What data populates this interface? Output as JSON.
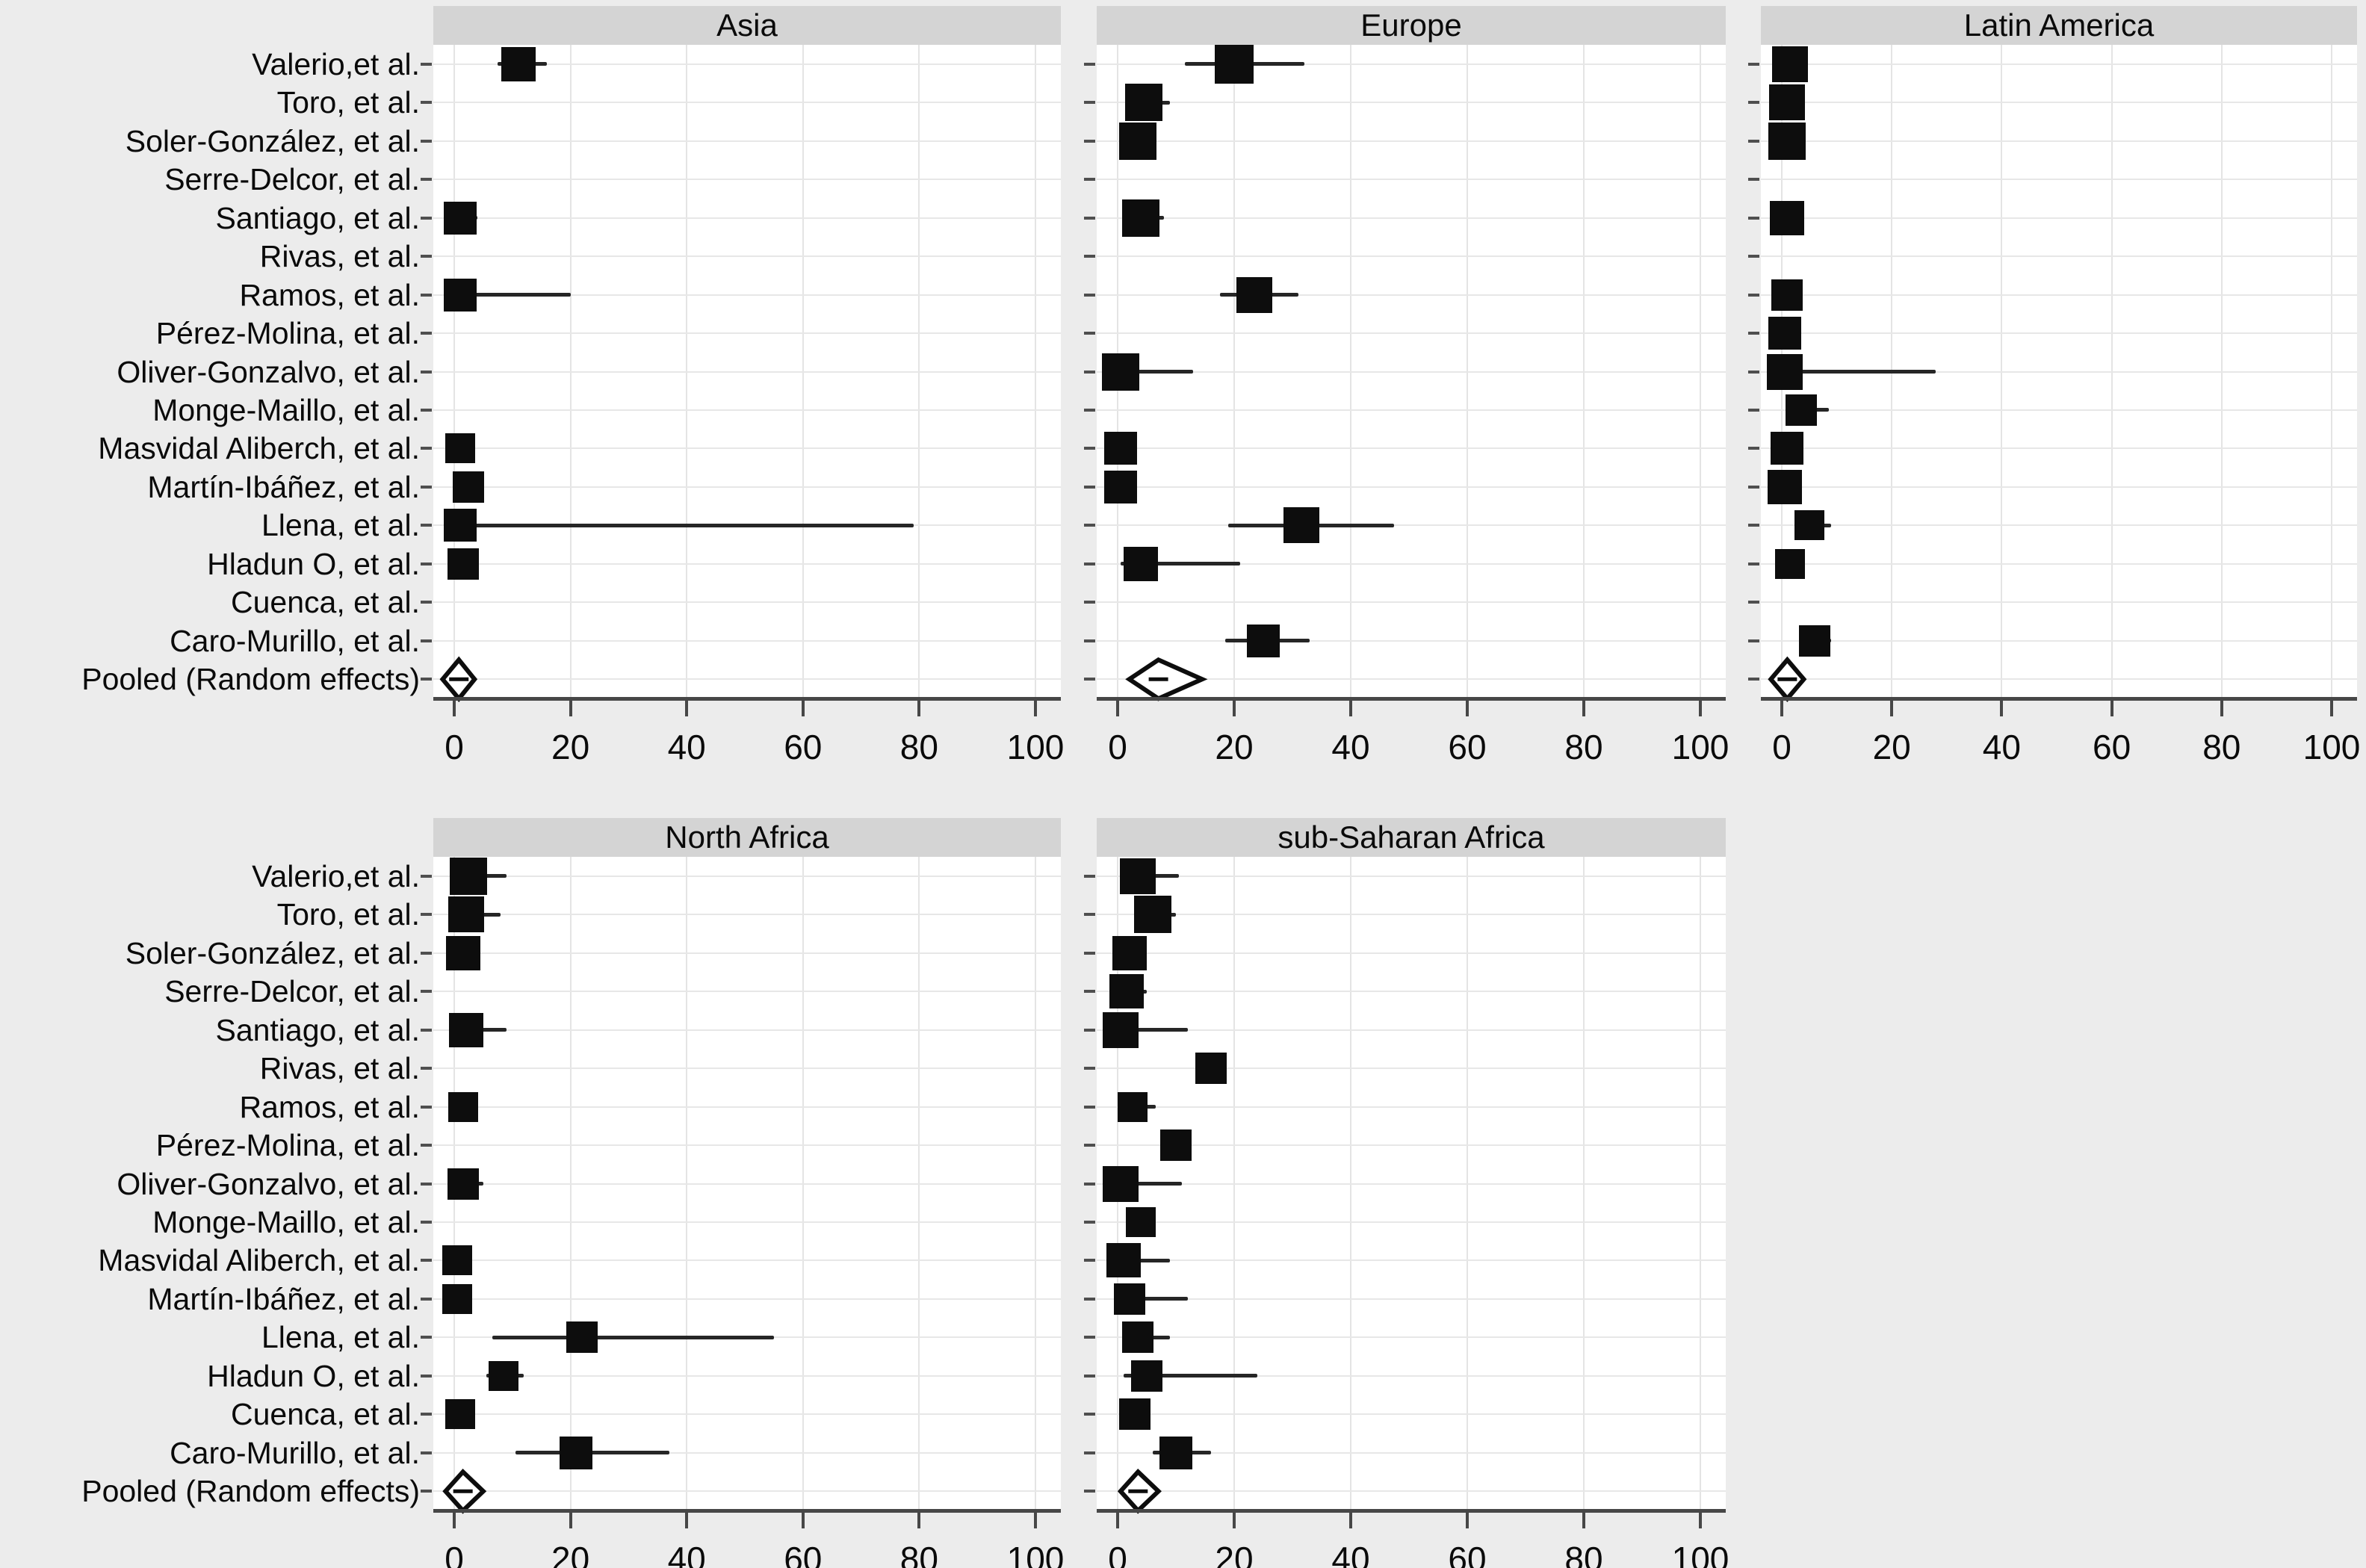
{
  "figure": {
    "description": "Forest plot meta-analysis of prevalence by region of origin; five panels with shared study list",
    "pooled_label": "Pooled (Random effects)"
  },
  "chart_data": {
    "type": "scatter",
    "subtype": "forest-plot",
    "grid": true,
    "studies": [
      "Valerio,et al.",
      "Toro, et al.",
      "Soler-González, et al.",
      "Serre-Delcor, et al.",
      "Santiago, et al.",
      "Rivas, et al.",
      "Ramos, et al.",
      "Pérez-Molina, et al.",
      "Oliver-Gonzalvo, et al.",
      "Monge-Maillo, et al.",
      "Masvidal Aliberch, et al.",
      "Martín-Ibáñez, et al.",
      "Llena, et al.",
      "Hladun O, et al.",
      "Cuenca, et al.",
      "Caro-Murillo, et al.",
      "Pooled (Random effects)"
    ],
    "x_axis": {
      "lim": [
        0,
        100
      ],
      "ticks": [
        "0",
        "20",
        "40",
        "60",
        "80",
        "100"
      ],
      "tick_values": [
        0,
        20,
        40,
        60,
        80,
        100
      ]
    },
    "marker_note": "black square = study estimate (size ~ weight), horizontal line = confidence interval, open diamond = pooled random-effects estimate",
    "panels": [
      {
        "title": "Asia",
        "points": [
          {
            "est": 11,
            "lo": 7.5,
            "hi": 16,
            "s": 46
          },
          null,
          null,
          null,
          {
            "est": 1,
            "lo": 0,
            "hi": 4,
            "s": 44
          },
          null,
          {
            "est": 1,
            "lo": 0,
            "hi": 20,
            "s": 44
          },
          null,
          null,
          null,
          {
            "est": 1,
            "lo": 0,
            "hi": 2.5,
            "s": 40
          },
          {
            "est": 2.5,
            "lo": 1,
            "hi": 4.5,
            "s": 42
          },
          {
            "est": 1,
            "lo": 0,
            "hi": 79,
            "s": 44
          },
          {
            "est": 1.5,
            "lo": 0,
            "hi": 3,
            "s": 42
          },
          null,
          null
        ],
        "pooled": {
          "est": 0.8,
          "lo": -2,
          "hi": 3.5
        }
      },
      {
        "title": "Europe",
        "points": [
          {
            "est": 20,
            "lo": 11.5,
            "hi": 32,
            "s": 52
          },
          {
            "est": 4.5,
            "lo": 2,
            "hi": 9,
            "s": 50
          },
          {
            "est": 3.5,
            "lo": 2.5,
            "hi": 5,
            "s": 50
          },
          null,
          {
            "est": 4,
            "lo": 1.5,
            "hi": 8,
            "s": 50
          },
          null,
          {
            "est": 23.5,
            "lo": 17.5,
            "hi": 31,
            "s": 48
          },
          null,
          {
            "est": 0.5,
            "lo": 0,
            "hi": 13,
            "s": 50
          },
          null,
          {
            "est": 0.5,
            "lo": 0,
            "hi": 2,
            "s": 44
          },
          {
            "est": 0.5,
            "lo": 0,
            "hi": 2,
            "s": 44
          },
          {
            "est": 31.5,
            "lo": 19,
            "hi": 47.5,
            "s": 48
          },
          {
            "est": 4,
            "lo": 0.5,
            "hi": 21,
            "s": 46
          },
          null,
          {
            "est": 25,
            "lo": 18.5,
            "hi": 33,
            "s": 44
          }
        ],
        "pooled": {
          "est": 7,
          "lo": 2,
          "hi": 14.5
        }
      },
      {
        "title": "Latin America",
        "points": [
          {
            "est": 1.5,
            "lo": 0.5,
            "hi": 4,
            "s": 48
          },
          {
            "est": 1,
            "lo": 0,
            "hi": 2,
            "s": 48
          },
          {
            "est": 1,
            "lo": 0,
            "hi": 3,
            "s": 50
          },
          null,
          {
            "est": 1,
            "lo": 0,
            "hi": 2,
            "s": 46
          },
          null,
          {
            "est": 1,
            "lo": 0,
            "hi": 2,
            "s": 42
          },
          {
            "est": 0.5,
            "lo": 0,
            "hi": 2,
            "s": 44
          },
          {
            "est": 0.5,
            "lo": 0,
            "hi": 28,
            "s": 48
          },
          {
            "est": 3.5,
            "lo": 1.5,
            "hi": 8.5,
            "s": 42
          },
          {
            "est": 1,
            "lo": 0,
            "hi": 2,
            "s": 44
          },
          {
            "est": 0.5,
            "lo": 0,
            "hi": 2,
            "s": 46
          },
          {
            "est": 5,
            "lo": 3.5,
            "hi": 9,
            "s": 40
          },
          {
            "est": 1.5,
            "lo": 0.5,
            "hi": 3,
            "s": 40
          },
          null,
          {
            "est": 6,
            "lo": 4.5,
            "hi": 9,
            "s": 42
          }
        ],
        "pooled": {
          "est": 1,
          "lo": -2,
          "hi": 4
        }
      },
      {
        "title": "North Africa",
        "points": [
          {
            "est": 2.5,
            "lo": 1,
            "hi": 9,
            "s": 50
          },
          {
            "est": 2,
            "lo": 0.5,
            "hi": 8,
            "s": 48
          },
          {
            "est": 1.5,
            "lo": 0.5,
            "hi": 3,
            "s": 46
          },
          null,
          {
            "est": 2,
            "lo": 0.5,
            "hi": 9,
            "s": 46
          },
          null,
          {
            "est": 1.5,
            "lo": 0.5,
            "hi": 4,
            "s": 40
          },
          null,
          {
            "est": 1.5,
            "lo": 0.5,
            "hi": 5,
            "s": 42
          },
          null,
          {
            "est": 0.5,
            "lo": 0,
            "hi": 2,
            "s": 40
          },
          {
            "est": 0.5,
            "lo": 0,
            "hi": 2,
            "s": 40
          },
          {
            "est": 22,
            "lo": 6.5,
            "hi": 55,
            "s": 42
          },
          {
            "est": 8.5,
            "lo": 5.5,
            "hi": 12,
            "s": 40
          },
          {
            "est": 1,
            "lo": 0,
            "hi": 2.5,
            "s": 40
          },
          {
            "est": 21,
            "lo": 10.5,
            "hi": 37,
            "s": 44
          }
        ],
        "pooled": {
          "est": 1.5,
          "lo": -1.5,
          "hi": 5
        }
      },
      {
        "title": "sub-Saharan Africa",
        "points": [
          {
            "est": 3.5,
            "lo": 1.5,
            "hi": 10.5,
            "s": 48
          },
          {
            "est": 6,
            "lo": 4,
            "hi": 10,
            "s": 50
          },
          {
            "est": 2,
            "lo": 1,
            "hi": 3,
            "s": 46
          },
          {
            "est": 1.5,
            "lo": 0.5,
            "hi": 5,
            "s": 46
          },
          {
            "est": 0.5,
            "lo": 0,
            "hi": 12,
            "s": 48
          },
          {
            "est": 16,
            "lo": 15.5,
            "hi": 17,
            "s": 42
          },
          {
            "est": 2.5,
            "lo": 1,
            "hi": 6.5,
            "s": 40
          },
          {
            "est": 10,
            "lo": 9,
            "hi": 12.5,
            "s": 42
          },
          {
            "est": 0.5,
            "lo": 0,
            "hi": 11,
            "s": 48
          },
          {
            "est": 4,
            "lo": 2,
            "hi": 6.5,
            "s": 40
          },
          {
            "est": 1,
            "lo": 0,
            "hi": 9,
            "s": 46
          },
          {
            "est": 2,
            "lo": 0.5,
            "hi": 12,
            "s": 42
          },
          {
            "est": 3.5,
            "lo": 1,
            "hi": 9,
            "s": 42
          },
          {
            "est": 5,
            "lo": 1,
            "hi": 24,
            "s": 42
          },
          {
            "est": 3,
            "lo": 2,
            "hi": 4,
            "s": 42
          },
          {
            "est": 10,
            "lo": 6,
            "hi": 16,
            "s": 44
          }
        ],
        "pooled": {
          "est": 3.5,
          "lo": 0.5,
          "hi": 7
        }
      }
    ],
    "colors": {
      "marker": "#0d0d0d",
      "ci_line": "#262626",
      "grid": "#e4e4e4",
      "panel_header_bg": "#d4d4d4",
      "figure_bg": "#ececec",
      "plot_bg": "#ffffff",
      "axis": "#474747",
      "text": "#0a0a0a"
    }
  }
}
